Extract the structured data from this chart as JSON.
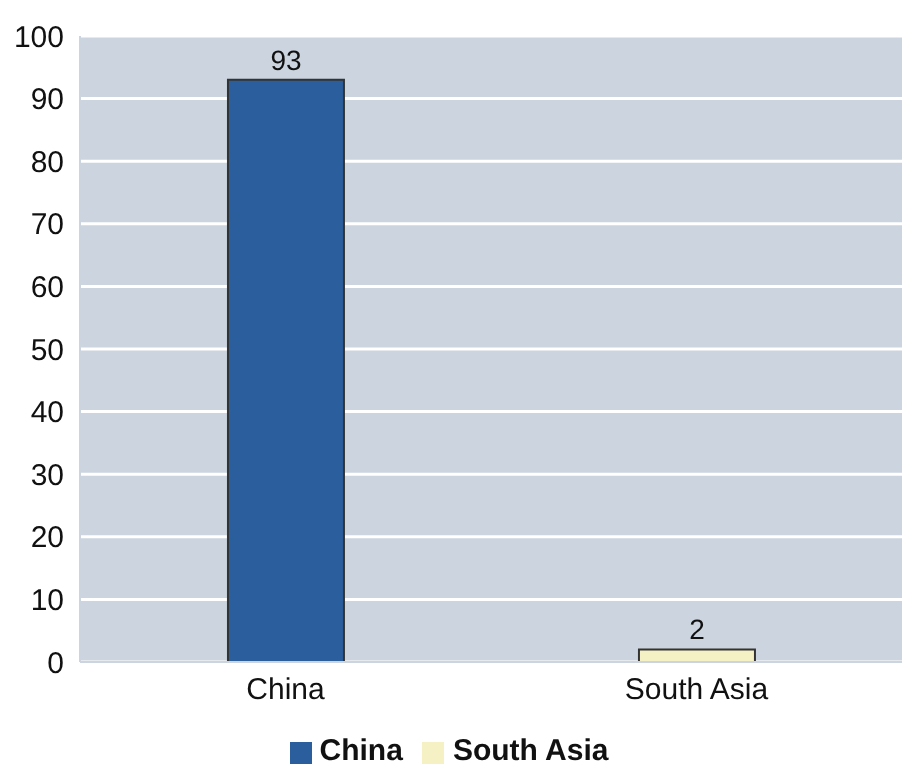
{
  "chart_data": {
    "type": "bar",
    "categories": [
      "China",
      "South Asia"
    ],
    "series": [
      {
        "name": "China",
        "color": "#2b5e9c",
        "values": [
          93,
          null
        ]
      },
      {
        "name": "South Asia",
        "color": "#f6f1c4",
        "values": [
          null,
          2
        ]
      }
    ],
    "stacked": true,
    "ylim": [
      0,
      100
    ],
    "yticks": [
      0,
      10,
      20,
      30,
      40,
      50,
      60,
      70,
      80,
      90,
      100
    ],
    "grid": "y",
    "legend": "bottom",
    "data_labels": true
  }
}
